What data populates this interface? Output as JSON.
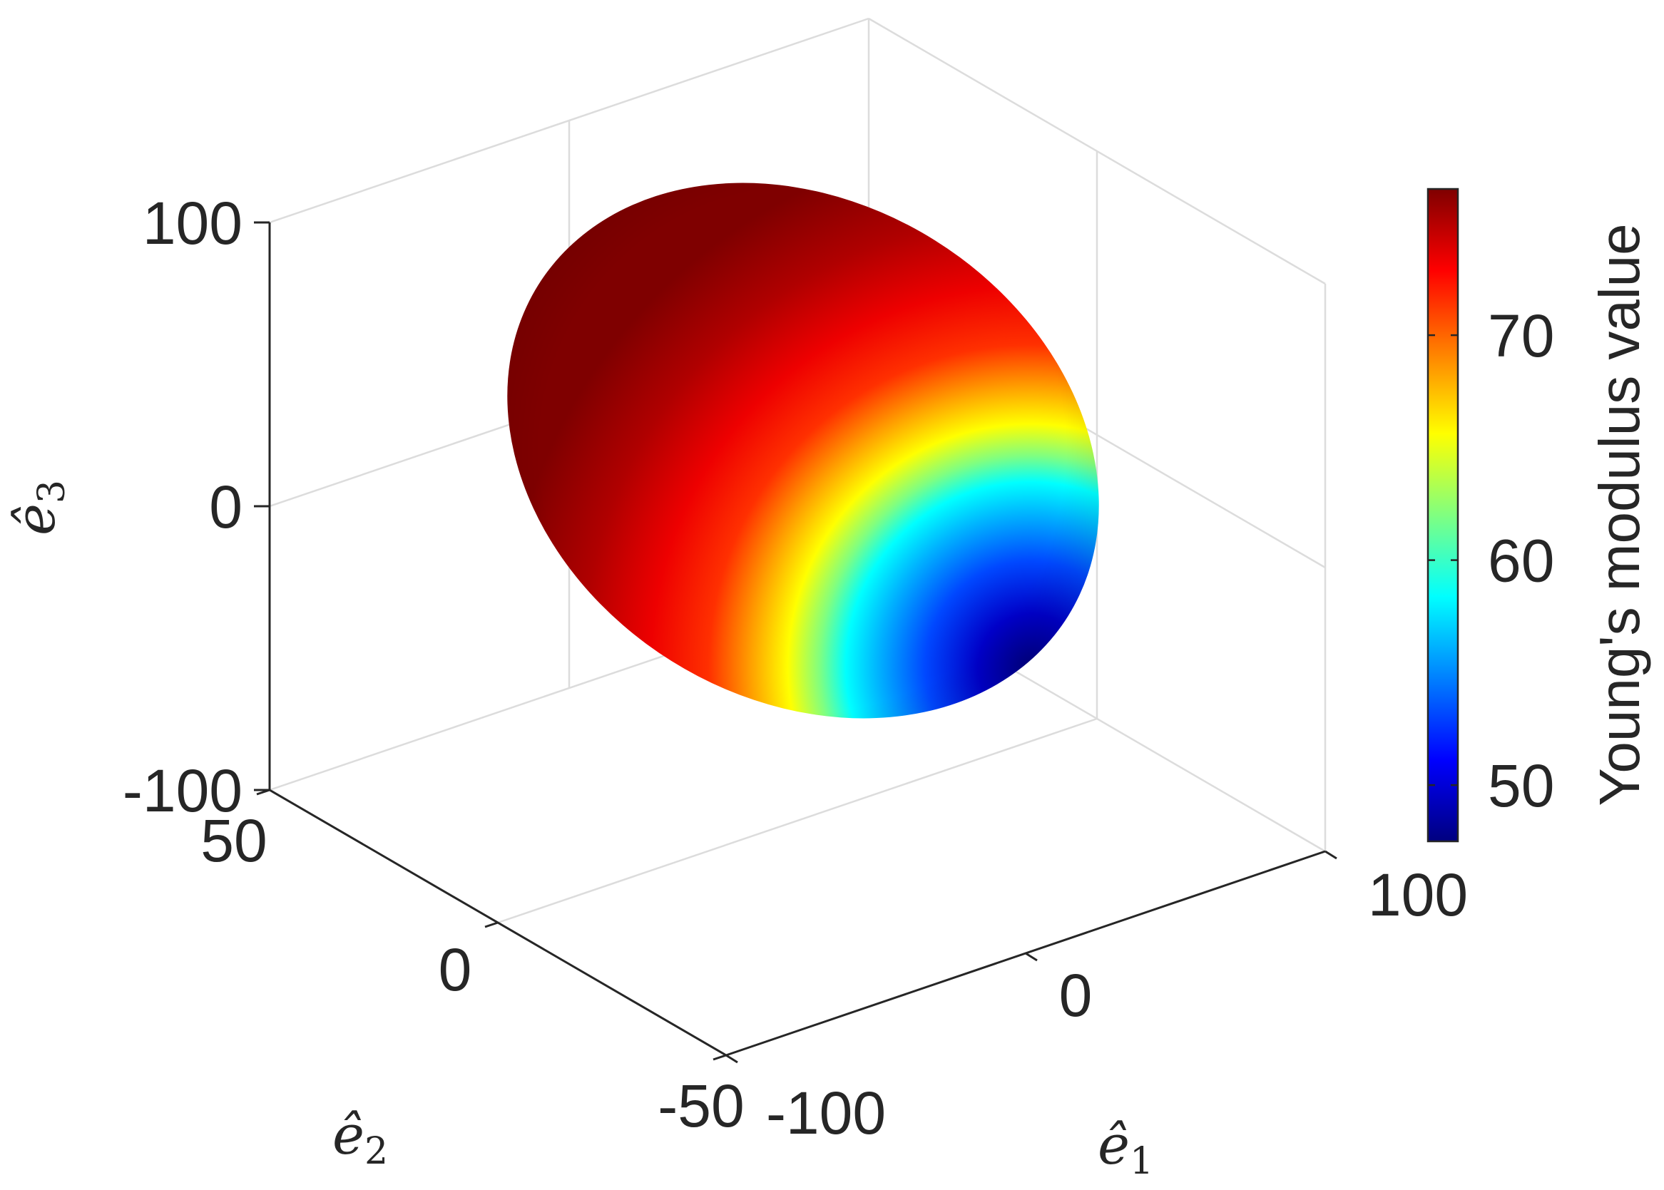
{
  "chart_data": {
    "type": "surface3d",
    "title": "",
    "surface": "ellipsoid (directional Young's modulus)",
    "axes": {
      "x": {
        "label": "ê",
        "sub": "1",
        "ticks": [
          -100,
          0,
          100
        ],
        "tick_labels": [
          "-100",
          "0",
          "100"
        ],
        "range": [
          -100,
          100
        ]
      },
      "y": {
        "label": "ê",
        "sub": "2",
        "ticks": [
          -50,
          0,
          50
        ],
        "tick_labels": [
          "-50",
          "0",
          "50"
        ],
        "range": [
          -50,
          50
        ]
      },
      "z": {
        "label": "ê",
        "sub": "3",
        "ticks": [
          -100,
          0,
          100
        ],
        "tick_labels": [
          "-100",
          "0",
          "100"
        ],
        "range": [
          -100,
          100
        ]
      }
    },
    "colorbar": {
      "title": "Young's modulus value",
      "ticks": [
        50,
        60,
        70
      ],
      "tick_labels": [
        "50",
        "60",
        "70"
      ],
      "range": [
        47.5,
        76.5
      ],
      "colormap": "jet",
      "colors": [
        "#00007f",
        "#0000ff",
        "#0080ff",
        "#00ffff",
        "#80ff80",
        "#ffff00",
        "#ff8000",
        "#ff0000",
        "#7f0000"
      ]
    },
    "value_extremes": {
      "min": 47.5,
      "max": 76.5
    },
    "grid": true,
    "legend": "none"
  }
}
